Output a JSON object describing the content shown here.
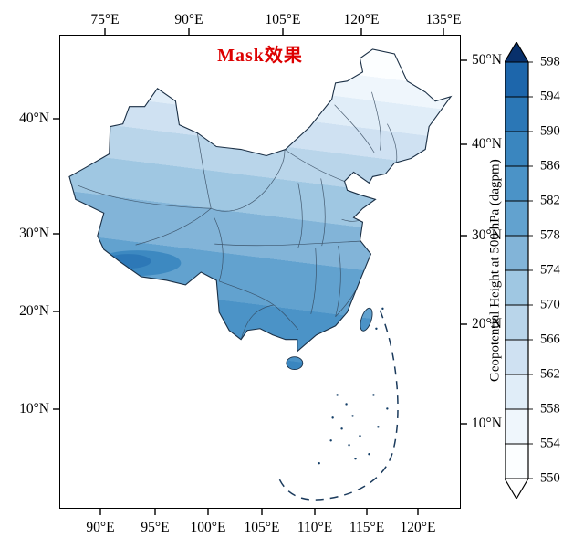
{
  "figure": {
    "title": "Mask效果",
    "title_color": "#dd0000"
  },
  "axes": {
    "top": [
      "75°E",
      "90°E",
      "105°E",
      "120°E",
      "135°E"
    ],
    "bottom": [
      "90°E",
      "95°E",
      "100°E",
      "105°E",
      "110°E",
      "115°E",
      "120°E"
    ],
    "left": [
      "40°N",
      "30°N",
      "20°N",
      "10°N"
    ],
    "right": [
      "50°N",
      "40°N",
      "30°N",
      "20°N",
      "10°N"
    ]
  },
  "colorbar": {
    "title": "Geopotential Height at 500 hPa (dagpm)",
    "ticks": [
      "598",
      "594",
      "590",
      "586",
      "582",
      "578",
      "574",
      "570",
      "566",
      "562",
      "558",
      "554",
      "550"
    ],
    "colors_top_to_bottom": [
      "#1d66ab",
      "#2b77b6",
      "#3a86bf",
      "#4b93c7",
      "#62a2cf",
      "#82b4d8",
      "#9fc7e2",
      "#b9d5ea",
      "#cfe1f2",
      "#e0edf8",
      "#eff6fc",
      "#fcfeff"
    ],
    "over_color": "#08306b",
    "under_color": "#ffffff"
  },
  "chart_data": {
    "type": "heatmap",
    "title": "Mask效果",
    "variable": "Geopotential Height at 500 hPa",
    "units": "dagpm",
    "colormap": "Blues",
    "levels": [
      550,
      554,
      558,
      562,
      566,
      570,
      574,
      578,
      582,
      586,
      590,
      594,
      598
    ],
    "colorbar_extend": "both",
    "legend_position": "right",
    "lon_ticks_top": [
      75,
      90,
      105,
      120,
      135
    ],
    "lon_ticks_bottom": [
      90,
      95,
      100,
      105,
      110,
      115,
      120
    ],
    "lat_ticks": [
      10,
      20,
      30,
      40,
      50
    ],
    "region": "China, masked to national boundary (data shown only inside China)",
    "projection": "Lambert conformal conic over China",
    "value_pattern": "Height increases southward: about 550-558 dagpm along the northern border with Mongolia (near-white), 562-578 dagpm across Xinjiang, Inner Mongolia and the Northeast, 578-586 dagpm over central China, and a 586-594 dagpm dark-blue maximum over southern China (Guangxi/Guangdong/Hunan/Fujian, Hainan, Taiwan) and along the southern rim of the Tibetan Plateau; the South China Sea dashed boundary line and scattered islands are drawn with no fill."
  }
}
